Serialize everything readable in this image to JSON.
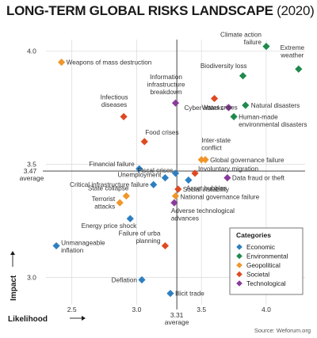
{
  "title": "LONG-TERM GLOBAL RISKS LANDSCAPE",
  "title_year": "(2020)",
  "source": "Source: Weforum.org",
  "colors": {
    "Economic": "#2e7fc0",
    "Environmental": "#1f8a4c",
    "Geopolitical": "#f0962a",
    "Societal": "#dd4a22",
    "Technological": "#8a3a9c"
  },
  "chart_data": {
    "type": "scatter",
    "title": "LONG-TERM GLOBAL RISKS LANDSCAPE (2020)",
    "xlabel": "Likelihood",
    "ylabel": "Impact",
    "xlim": [
      2.3,
      4.3
    ],
    "ylim": [
      2.88,
      4.05
    ],
    "x_ticks": [
      2.5,
      3.0,
      3.5,
      4.0
    ],
    "y_ticks": [
      3.0,
      3.5,
      4.0
    ],
    "x_average": 3.31,
    "y_average": 3.47,
    "x_average_label": "average",
    "y_average_label": "average",
    "x_average_value": "3.31",
    "y_average_value": "3.47",
    "legend_title": "Categories",
    "legend_position": "bottom-right",
    "grid": true,
    "points": [
      {
        "name": "Climate action failure",
        "x": 4.0,
        "y": 4.02,
        "category": "Environmental"
      },
      {
        "name": "Extreme weather",
        "x": 4.25,
        "y": 3.92,
        "category": "Environmental"
      },
      {
        "name": "Weapons of mass destruction",
        "x": 2.42,
        "y": 3.95,
        "category": "Geopolitical"
      },
      {
        "name": "Biodiversity loss",
        "x": 3.82,
        "y": 3.89,
        "category": "Environmental"
      },
      {
        "name": "Information infrastructure breakdown",
        "x": 3.3,
        "y": 3.77,
        "category": "Technological"
      },
      {
        "name": "Water crises",
        "x": 3.6,
        "y": 3.79,
        "category": "Societal"
      },
      {
        "name": "Natural disasters",
        "x": 3.84,
        "y": 3.76,
        "category": "Environmental"
      },
      {
        "name": "Cyber attacks",
        "x": 3.71,
        "y": 3.75,
        "category": "Technological"
      },
      {
        "name": "Infectious diseases",
        "x": 2.9,
        "y": 3.71,
        "category": "Societal"
      },
      {
        "name": "Human-made environmental disasters",
        "x": 3.75,
        "y": 3.71,
        "category": "Environmental"
      },
      {
        "name": "Food crises",
        "x": 3.06,
        "y": 3.6,
        "category": "Societal"
      },
      {
        "name": "Inter-state conflict",
        "x": 3.5,
        "y": 3.52,
        "category": "Geopolitical"
      },
      {
        "name": "Global governance failure",
        "x": 3.53,
        "y": 3.52,
        "category": "Geopolitical"
      },
      {
        "name": "Financial failure",
        "x": 3.02,
        "y": 3.48,
        "category": "Economic"
      },
      {
        "name": "Involuntary migration",
        "x": 3.45,
        "y": 3.46,
        "category": "Societal"
      },
      {
        "name": "Fiscal crises",
        "x": 3.3,
        "y": 3.46,
        "category": "Economic"
      },
      {
        "name": "Unemployment",
        "x": 3.22,
        "y": 3.44,
        "category": "Economic"
      },
      {
        "name": "Data fraud or theft",
        "x": 3.7,
        "y": 3.44,
        "category": "Technological"
      },
      {
        "name": "Critical infrastructure failure",
        "x": 3.13,
        "y": 3.41,
        "category": "Economic"
      },
      {
        "name": "Asset bubbles",
        "x": 3.4,
        "y": 3.43,
        "category": "Economic"
      },
      {
        "name": "Social instability",
        "x": 3.32,
        "y": 3.39,
        "category": "Societal"
      },
      {
        "name": "State collapse",
        "x": 2.92,
        "y": 3.36,
        "category": "Geopolitical"
      },
      {
        "name": "Terrorist attacks",
        "x": 2.87,
        "y": 3.33,
        "category": "Geopolitical"
      },
      {
        "name": "National governance failure",
        "x": 3.3,
        "y": 3.36,
        "category": "Geopolitical"
      },
      {
        "name": "Adverse technological advances",
        "x": 3.29,
        "y": 3.33,
        "category": "Technological"
      },
      {
        "name": "Energy price shock",
        "x": 2.95,
        "y": 3.26,
        "category": "Economic"
      },
      {
        "name": "Unmanageable inflation",
        "x": 2.38,
        "y": 3.14,
        "category": "Economic"
      },
      {
        "name": "Failure of urban planning",
        "x": 3.22,
        "y": 3.14,
        "category": "Societal"
      },
      {
        "name": "Deflation",
        "x": 3.04,
        "y": 2.99,
        "category": "Economic"
      },
      {
        "name": "Illicit trade",
        "x": 3.26,
        "y": 2.93,
        "category": "Economic"
      }
    ]
  },
  "labels": [
    {
      "text": "Climate action failure",
      "lines": [
        "Climate action",
        "failure"
      ]
    },
    {
      "text": "Extreme weather",
      "lines": [
        "Extreme",
        "weather"
      ]
    },
    {
      "text": "Weapons of mass destruction",
      "lines": [
        "Weapons of mass destruction"
      ]
    },
    {
      "text": "Biodiversity loss",
      "lines": [
        "Biodiversity loss"
      ]
    },
    {
      "text": "Information infrastructure breakdown",
      "lines": [
        "Information",
        "infrastructure",
        "breakdown"
      ]
    },
    {
      "text": "Water crises",
      "lines": [
        "Water crises"
      ]
    },
    {
      "text": "Natural disasters",
      "lines": [
        "Natural disasters"
      ]
    },
    {
      "text": "Cyber attacks",
      "lines": [
        "Cyber attacks"
      ]
    },
    {
      "text": "Infectious diseases",
      "lines": [
        "Infectious",
        "diseases"
      ]
    },
    {
      "text": "Human-made environmental disasters",
      "lines": [
        "Human-made",
        "environmental disasters"
      ]
    },
    {
      "text": "Food crises",
      "lines": [
        "Food crises"
      ]
    },
    {
      "text": "Inter-state conflict",
      "lines": [
        "Inter-state",
        "conflict"
      ]
    },
    {
      "text": "Global governance failure",
      "lines": [
        "Global governance failure"
      ]
    },
    {
      "text": "Financial failure",
      "lines": [
        "Financial failure"
      ]
    },
    {
      "text": "Involuntary migration",
      "lines": [
        "Involuntary migration"
      ]
    },
    {
      "text": "Fiscal crises",
      "lines": [
        "Fiscal crises"
      ]
    },
    {
      "text": "Unemployment",
      "lines": [
        "Unemployment"
      ]
    },
    {
      "text": "Data fraud or theft",
      "lines": [
        "Data fraud or theft"
      ]
    },
    {
      "text": "Critical infrastructure failure",
      "lines": [
        "Critical infrastructure failure"
      ]
    },
    {
      "text": "Asset bubbles",
      "lines": [
        "Asset bubbles"
      ]
    },
    {
      "text": "Social instability",
      "lines": [
        "Social instability"
      ]
    },
    {
      "text": "State collapse",
      "lines": [
        "State collapse"
      ]
    },
    {
      "text": "Terrorist attacks",
      "lines": [
        "Terrorist",
        "attacks"
      ]
    },
    {
      "text": "National governance failure",
      "lines": [
        "National governance failure"
      ]
    },
    {
      "text": "Adverse technological advances",
      "lines": [
        "Adverse technological",
        "advances"
      ]
    },
    {
      "text": "Energy price shock",
      "lines": [
        "Energy price shock"
      ]
    },
    {
      "text": "Unmanageable inflation",
      "lines": [
        "Unmanageable",
        "inflation"
      ]
    },
    {
      "text": "Failure of urban planning",
      "lines": [
        "Failure of urba",
        "planning"
      ]
    },
    {
      "text": "Deflation",
      "lines": [
        "Deflation"
      ]
    },
    {
      "text": "Illicit trade",
      "lines": [
        "Illicit trade"
      ]
    }
  ]
}
